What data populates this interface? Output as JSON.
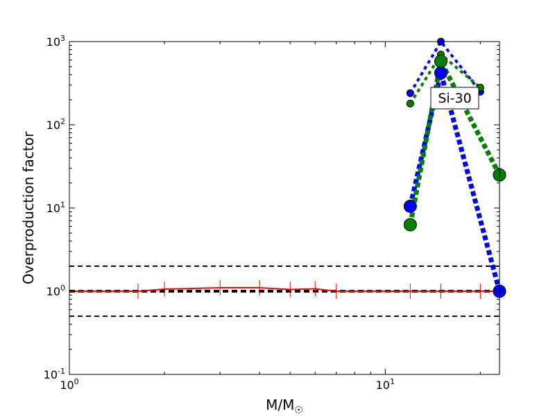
{
  "chart_data": {
    "type": "line",
    "xscale": "log",
    "yscale": "log",
    "xlim": [
      1,
      23
    ],
    "ylim": [
      0.1,
      1000
    ],
    "xlabel": "M/M",
    "xlabel_subscript": "☉",
    "ylabel": "Overproduction factor",
    "annotation": "Si-30",
    "x_ticks": [
      {
        "value": 1,
        "base": "10",
        "exp": "0"
      },
      {
        "value": 10,
        "base": "10",
        "exp": "1"
      }
    ],
    "y_ticks": [
      {
        "value": 0.1,
        "base": "10",
        "exp": "-1"
      },
      {
        "value": 1,
        "base": "10",
        "exp": "0"
      },
      {
        "value": 10,
        "base": "10",
        "exp": "1"
      },
      {
        "value": 100,
        "base": "10",
        "exp": "2"
      },
      {
        "value": 1000,
        "base": "10",
        "exp": "3"
      }
    ],
    "reference_lines": [
      {
        "y": 2.0,
        "style": "dashed",
        "color": "#000000",
        "weight": "thin"
      },
      {
        "y": 1.0,
        "style": "dashed",
        "color": "#000000",
        "weight": "thick"
      },
      {
        "y": 0.5,
        "style": "dashed",
        "color": "#000000",
        "weight": "thin"
      }
    ],
    "series": [
      {
        "color": "#ff0000",
        "style": "solid",
        "marker": "vline",
        "x": [
          1.0,
          1.65,
          2.0,
          3.0,
          4.0,
          5.0,
          6.0,
          7.0,
          12.0,
          15.0,
          20.0,
          23.0
        ],
        "y": [
          1.0,
          1.0,
          1.06,
          1.1,
          1.1,
          1.05,
          1.07,
          1.0,
          1.0,
          1.0,
          1.0,
          1.0
        ]
      },
      {
        "color": "#0000ff",
        "style": "dotted",
        "width": "thin",
        "marker": "circle",
        "x": [
          12.0,
          15.0,
          20.0
        ],
        "y": [
          240,
          1000,
          250
        ]
      },
      {
        "color": "#008000",
        "style": "dotted",
        "width": "thin",
        "marker": "circle",
        "x": [
          12.0,
          15.0,
          20.0
        ],
        "y": [
          180,
          700,
          280
        ]
      },
      {
        "color": "#0000ff",
        "style": "dotted",
        "width": "thick",
        "marker": "circle",
        "x": [
          12.0,
          15.0,
          23.0
        ],
        "y": [
          10.5,
          420,
          1.0
        ]
      },
      {
        "color": "#008000",
        "style": "dotted",
        "width": "thick",
        "marker": "circle",
        "x": [
          12.0,
          15.0,
          23.0
        ],
        "y": [
          6.3,
          580,
          25
        ]
      }
    ]
  }
}
